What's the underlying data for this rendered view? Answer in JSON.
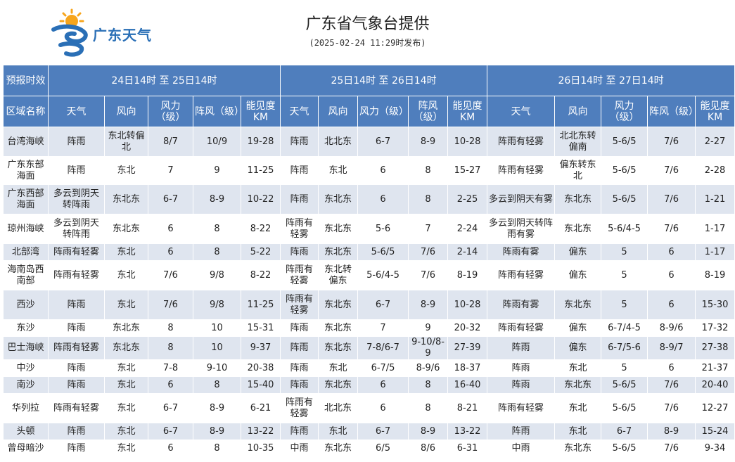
{
  "header": {
    "logo_text": "广东天气",
    "title": "广东省气象台提供",
    "publish_time": "(2025-02-24 11:29时发布)"
  },
  "table": {
    "corner_label": "预报时效",
    "area_label": "区域名称",
    "periods": [
      "24日14时 至 25日14时",
      "25日14时 至 26日14时",
      "26日14时 至 27日14时"
    ],
    "sub_headers": [
      "天气",
      "风向",
      "风力（级）",
      "阵风（级）",
      "能见度KM"
    ],
    "rows": [
      {
        "area": "台湾海峡",
        "p": [
          [
            "阵雨",
            "东北转偏北",
            "8/7",
            "10/9",
            "19-28"
          ],
          [
            "阵雨",
            "北北东",
            "6-7",
            "8-9",
            "10-28"
          ],
          [
            "阵雨有轻雾",
            "北北东转偏南",
            "5-6/5",
            "7/6",
            "2-27"
          ]
        ]
      },
      {
        "area": "广东东部海面",
        "p": [
          [
            "阵雨",
            "东北",
            "7",
            "9",
            "11-25"
          ],
          [
            "阵雨",
            "东北",
            "6",
            "8",
            "15-27"
          ],
          [
            "阵雨有轻雾",
            "偏东转东北",
            "5-6/5",
            "7/6",
            "2-28"
          ]
        ]
      },
      {
        "area": "广东西部海面",
        "p": [
          [
            "多云到阴天转阵雨",
            "东北东",
            "6-7",
            "8-9",
            "10-22"
          ],
          [
            "阵雨",
            "东北东",
            "6",
            "8",
            "2-25"
          ],
          [
            "多云到阴天有雾",
            "东北东",
            "5-6/5",
            "7/6",
            "1-21"
          ]
        ]
      },
      {
        "area": "琼州海峡",
        "p": [
          [
            "多云到阴天转阵雨",
            "东北东",
            "6",
            "8",
            "8-22"
          ],
          [
            "阵雨有轻雾",
            "东北东",
            "5-6",
            "7",
            "2-24"
          ],
          [
            "多云到阴天转阵雨有雾",
            "东北东",
            "5-6/4-5",
            "7/6",
            "1-17"
          ]
        ]
      },
      {
        "area": "北部湾",
        "p": [
          [
            "阵雨有轻雾",
            "东北",
            "6",
            "8",
            "5-22"
          ],
          [
            "阵雨",
            "东北东",
            "5-6/5",
            "7/6",
            "2-14"
          ],
          [
            "阵雨有雾",
            "偏东",
            "5",
            "6",
            "1-17"
          ]
        ]
      },
      {
        "area": "海南岛西南部",
        "p": [
          [
            "阵雨有轻雾",
            "东北",
            "7/6",
            "9/8",
            "8-22"
          ],
          [
            "阵雨有轻雾",
            "东北转偏东",
            "5-6/4-5",
            "7/6",
            "8-19"
          ],
          [
            "阵雨有轻雾",
            "偏东",
            "5",
            "6",
            "8-19"
          ]
        ]
      },
      {
        "area": "西沙",
        "p": [
          [
            "阵雨",
            "东北",
            "7/6",
            "9/8",
            "11-25"
          ],
          [
            "阵雨有轻雾",
            "东北东",
            "6-7",
            "8-9",
            "10-28"
          ],
          [
            "阵雨有雾",
            "东北东",
            "5",
            "6",
            "15-30"
          ]
        ]
      },
      {
        "area": "东沙",
        "p": [
          [
            "阵雨",
            "东北东",
            "8",
            "10",
            "15-31"
          ],
          [
            "阵雨",
            "东北东",
            "7",
            "9",
            "20-32"
          ],
          [
            "阵雨有轻雾",
            "偏东",
            "6-7/4-5",
            "8-9/6",
            "17-32"
          ]
        ]
      },
      {
        "area": "巴士海峡",
        "p": [
          [
            "阵雨有轻雾",
            "东北东",
            "8",
            "10",
            "9-37"
          ],
          [
            "阵雨",
            "东北东",
            "7-8/6-7",
            "9-10/8-9",
            "27-39"
          ],
          [
            "阵雨",
            "偏东",
            "6-7/5-6",
            "8-9/7",
            "27-38"
          ]
        ]
      },
      {
        "area": "中沙",
        "p": [
          [
            "阵雨",
            "东北",
            "7-8",
            "9-10",
            "20-38"
          ],
          [
            "阵雨",
            "东北",
            "6-7/5",
            "8-9/6",
            "18-37"
          ],
          [
            "阵雨",
            "东北",
            "5",
            "6",
            "21-37"
          ]
        ]
      },
      {
        "area": "南沙",
        "p": [
          [
            "阵雨",
            "东北",
            "6",
            "8",
            "15-40"
          ],
          [
            "阵雨",
            "东北东",
            "6",
            "8",
            "16-40"
          ],
          [
            "阵雨",
            "东北东",
            "5-6/5",
            "7/6",
            "20-40"
          ]
        ]
      },
      {
        "area": "华列拉",
        "p": [
          [
            "阵雨有轻雾",
            "东北",
            "6-7",
            "8-9",
            "6-21"
          ],
          [
            "阵雨有轻雾",
            "北北东",
            "6",
            "8",
            "8-21"
          ],
          [
            "阵雨有轻雾",
            "东北",
            "5-6/5",
            "7/6",
            "12-27"
          ]
        ]
      },
      {
        "area": "头顿",
        "p": [
          [
            "阵雨",
            "东北",
            "6-7",
            "8-9",
            "13-22"
          ],
          [
            "阵雨",
            "东北",
            "6-7",
            "8-9",
            "13-22"
          ],
          [
            "阵雨",
            "东北",
            "6-7",
            "8-9",
            "15-24"
          ]
        ]
      },
      {
        "area": "曾母暗沙",
        "p": [
          [
            "阵雨",
            "东北",
            "6",
            "8",
            "10-35"
          ],
          [
            "中雨",
            "东北东",
            "6/5",
            "8/6",
            "6-31"
          ],
          [
            "中雨",
            "东北东",
            "5-6/5",
            "7/6",
            "9-34"
          ]
        ]
      }
    ]
  }
}
